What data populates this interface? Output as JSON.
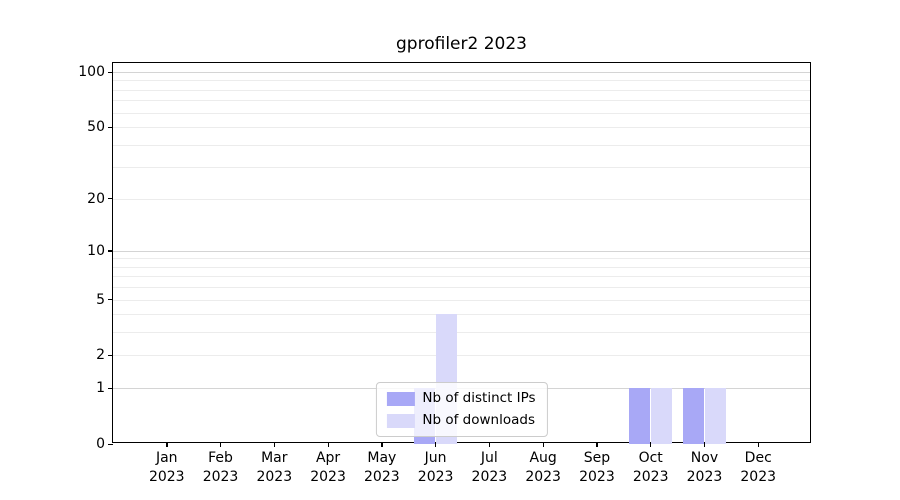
{
  "chart_data": {
    "type": "bar",
    "title": "gprofiler2 2023",
    "categories": [
      "Jan",
      "Feb",
      "Mar",
      "Apr",
      "May",
      "Jun",
      "Jul",
      "Aug",
      "Sep",
      "Oct",
      "Nov",
      "Dec"
    ],
    "x_year": "2023",
    "series": [
      {
        "name": "Nb of distinct IPs",
        "color": "#a8a8f6",
        "values": [
          0,
          0,
          0,
          0,
          0,
          1,
          0,
          0,
          0,
          1,
          1,
          0
        ]
      },
      {
        "name": "Nb of downloads",
        "color": "#d9d9fa",
        "values": [
          0,
          0,
          0,
          0,
          0,
          4,
          0,
          0,
          0,
          1,
          1,
          0
        ]
      }
    ],
    "xlabel": "",
    "ylabel": "",
    "yscale": "log1p",
    "ylim": [
      0,
      112
    ],
    "yticks": [
      0,
      1,
      2,
      5,
      10,
      20,
      50,
      100
    ],
    "grid": {
      "orientation": "horizontal",
      "major_values": [
        1,
        10,
        100
      ],
      "minor_values": [
        2,
        3,
        4,
        5,
        6,
        7,
        8,
        9,
        20,
        30,
        40,
        50,
        60,
        70,
        80,
        90
      ],
      "major_color": "#d4d4d4",
      "minor_color": "#ececec"
    },
    "legend": {
      "position": "lower center"
    },
    "bar_width_fraction": 0.4
  },
  "colors": {
    "background": "#ffffff",
    "axis": "#000000",
    "text": "#000000"
  }
}
